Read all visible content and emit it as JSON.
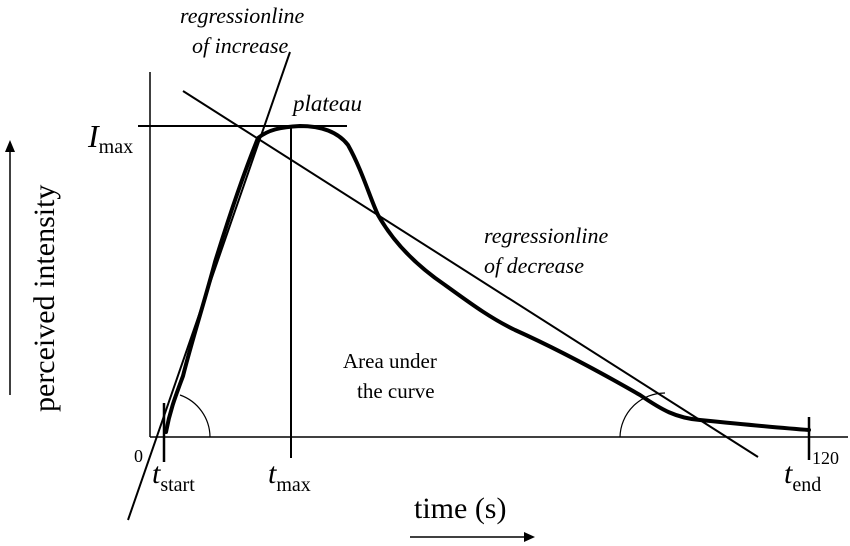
{
  "labels": {
    "regression_increase_line1": "regressionline",
    "regression_increase_line2": "of increase",
    "plateau": "plateau",
    "regression_decrease_line1": "regressionline",
    "regression_decrease_line2": "of decrease",
    "area_line1": "Area under",
    "area_line2": "the curve",
    "y_axis": "perceived intensity",
    "x_axis": "time (s)",
    "origin": "0",
    "x_end_value": "120",
    "i_max_main": "I",
    "i_max_sub": "max",
    "t_start_main": "t",
    "t_start_sub": "start",
    "t_max_main": "t",
    "t_max_sub": "max",
    "t_end_main": "t",
    "t_end_sub": "end"
  }
}
